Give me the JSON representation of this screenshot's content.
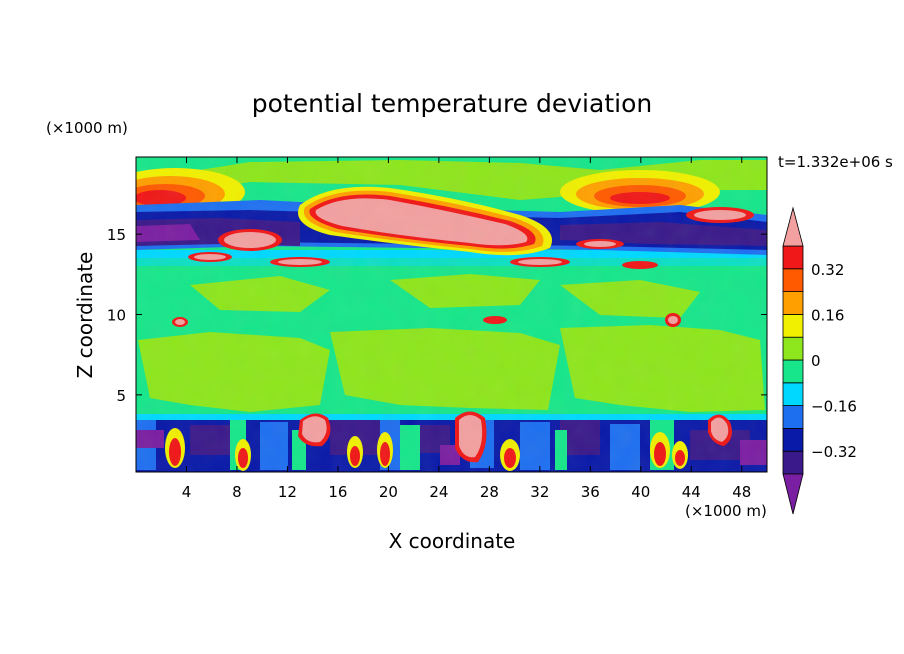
{
  "chart_data": {
    "type": "heatmap",
    "title": "potential temperature deviation",
    "xlabel": "X coordinate",
    "ylabel": "Z coordinate",
    "x_unit_label": "(×1000 m)",
    "y_unit_label": "(×1000 m)",
    "time_label": "t=1.332e+06 s",
    "xlim": [
      0,
      50
    ],
    "ylim": [
      0.2,
      19.8
    ],
    "x_ticks": [
      4,
      8,
      12,
      16,
      20,
      24,
      28,
      32,
      36,
      40,
      44,
      48
    ],
    "y_ticks": [
      5,
      10,
      15
    ],
    "colorbar": {
      "levels": [
        -0.4,
        -0.32,
        -0.24,
        -0.16,
        -0.08,
        0,
        0.08,
        0.16,
        0.24,
        0.32,
        0.4
      ],
      "colors": [
        "#7b1fa2",
        "#3a1a8a",
        "#0a1aa8",
        "#1e6ff0",
        "#00d8ff",
        "#17e68a",
        "#8ee61c",
        "#f0f000",
        "#ffa000",
        "#ff5a00",
        "#f01818",
        "#f2a0a0"
      ],
      "tick_labels": [
        "0.32",
        "0.16",
        "0",
        "−0.16",
        "−0.32"
      ],
      "tick_values": [
        0.32,
        0.16,
        0,
        -0.16,
        -0.32
      ]
    },
    "features": [
      {
        "name": "upper-warm-anomaly-left",
        "x": [
          0,
          8
        ],
        "z": [
          16.5,
          19
        ],
        "value": 0.3
      },
      {
        "name": "upper-warm-anomaly-right",
        "x": [
          35,
          45
        ],
        "z": [
          16.5,
          19
        ],
        "value": 0.3
      },
      {
        "name": "tropopause-cold-band",
        "x": [
          0,
          50
        ],
        "z": [
          14.5,
          17
        ],
        "value": -0.35
      },
      {
        "name": "main-warm-blob",
        "x": [
          13,
          31
        ],
        "z": [
          14,
          17.5
        ],
        "value": 0.45
      },
      {
        "name": "boundary-layer-turbulence",
        "x": [
          0,
          50
        ],
        "z": [
          0.2,
          3.8
        ],
        "value": 0
      }
    ]
  }
}
